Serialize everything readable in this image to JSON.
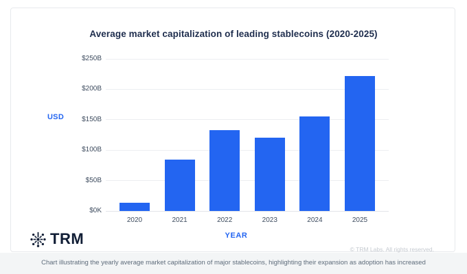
{
  "chart": {
    "title": "Average market capitalization of leading stablecoins (2020-2025)",
    "y_axis_title": "USD",
    "x_axis_title": "YEAR"
  },
  "footer": {
    "logo_icon": "trm-starburst-icon",
    "logo_text": "TRM",
    "copyright": "© TRM Labs. All rights reserved."
  },
  "caption": "Chart illustrating the yearly average market capitalization of major stablecoins, highlighting their expansion as adoption has increased",
  "colors": {
    "bar": "#2365f1",
    "accent_text": "#2365f1",
    "title_text": "#1e2d4d",
    "tick_text": "#3e4c5f",
    "gridline": "#eceef1",
    "copyright_text": "#c5cad0",
    "caption_text": "#5d6b7a",
    "caption_background": "#f3f5f6"
  },
  "chart_data": {
    "type": "bar",
    "title": "Average market capitalization of leading stablecoins (2020-2025)",
    "categories": [
      "2020",
      "2021",
      "2022",
      "2023",
      "2024",
      "2025"
    ],
    "values": [
      13,
      85,
      133,
      120,
      155,
      222
    ],
    "unit": "USD billions",
    "xlabel": "YEAR",
    "ylabel": "USD",
    "ylim": [
      0,
      250
    ],
    "y_tick_values": [
      0,
      50,
      100,
      150,
      200,
      250
    ],
    "y_tick_labels": [
      "$0K",
      "$50B",
      "$100B",
      "$150B",
      "$200B",
      "$250B"
    ],
    "grid": true,
    "legend": "none",
    "bar_color": "#2365f1"
  }
}
